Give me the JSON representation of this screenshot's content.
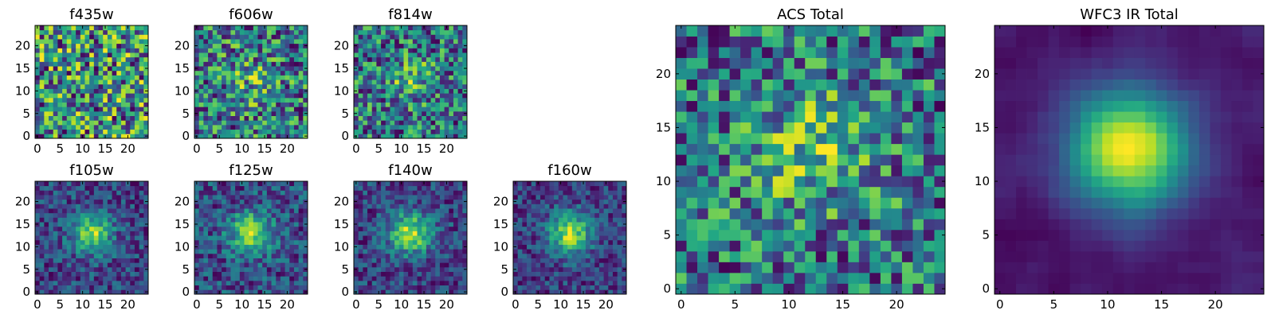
{
  "chart_data": [
    {
      "type": "heatmap",
      "title": "f435w",
      "xticks": [
        "0",
        "5",
        "10",
        "15",
        "20"
      ],
      "yticks": [
        "0",
        "5",
        "10",
        "15",
        "20"
      ],
      "xlim": [
        -0.5,
        24.5
      ],
      "ylim": [
        -0.5,
        24.5
      ],
      "grid": false,
      "colormap": "viridis",
      "noise": 0.85,
      "peak": 0.0,
      "sigma": 4,
      "center": [
        12,
        12
      ],
      "smooth": false
    },
    {
      "type": "heatmap",
      "title": "f606w",
      "xticks": [
        "0",
        "5",
        "10",
        "15",
        "20"
      ],
      "yticks": [
        "0",
        "5",
        "10",
        "15",
        "20"
      ],
      "xlim": [
        -0.5,
        24.5
      ],
      "ylim": [
        -0.5,
        24.5
      ],
      "grid": false,
      "colormap": "viridis",
      "noise": 0.75,
      "peak": 0.25,
      "sigma": 4,
      "center": [
        12,
        12
      ],
      "smooth": false
    },
    {
      "type": "heatmap",
      "title": "f814w",
      "xticks": [
        "0",
        "5",
        "10",
        "15",
        "20"
      ],
      "yticks": [
        "0",
        "5",
        "10",
        "15",
        "20"
      ],
      "xlim": [
        -0.5,
        24.5
      ],
      "ylim": [
        -0.5,
        24.5
      ],
      "grid": false,
      "colormap": "viridis",
      "noise": 0.7,
      "peak": 0.4,
      "sigma": 3,
      "center": [
        12,
        13
      ],
      "smooth": false
    },
    {
      "type": "heatmap",
      "title": "f105w",
      "xticks": [
        "0",
        "5",
        "10",
        "15",
        "20"
      ],
      "yticks": [
        "0",
        "5",
        "10",
        "15",
        "20"
      ],
      "xlim": [
        -0.5,
        24.5
      ],
      "ylim": [
        -0.5,
        24.5
      ],
      "grid": false,
      "colormap": "viridis",
      "noise": 0.35,
      "peak": 0.85,
      "sigma": 3,
      "center": [
        12,
        13
      ],
      "smooth": false
    },
    {
      "type": "heatmap",
      "title": "f125w",
      "xticks": [
        "0",
        "5",
        "10",
        "15",
        "20"
      ],
      "yticks": [
        "0",
        "5",
        "10",
        "15",
        "20"
      ],
      "xlim": [
        -0.5,
        24.5
      ],
      "ylim": [
        -0.5,
        24.5
      ],
      "grid": false,
      "colormap": "viridis",
      "noise": 0.35,
      "peak": 0.8,
      "sigma": 3.2,
      "center": [
        12,
        13
      ],
      "smooth": false
    },
    {
      "type": "heatmap",
      "title": "f140w",
      "xticks": [
        "0",
        "5",
        "10",
        "15",
        "20"
      ],
      "yticks": [
        "0",
        "5",
        "10",
        "15",
        "20"
      ],
      "xlim": [
        -0.5,
        24.5
      ],
      "ylim": [
        -0.5,
        24.5
      ],
      "grid": false,
      "colormap": "viridis",
      "noise": 0.32,
      "peak": 0.82,
      "sigma": 3.3,
      "center": [
        12,
        13
      ],
      "smooth": false
    },
    {
      "type": "heatmap",
      "title": "f160w",
      "xticks": [
        "0",
        "5",
        "10",
        "15",
        "20"
      ],
      "yticks": [
        "0",
        "5",
        "10",
        "15",
        "20"
      ],
      "xlim": [
        -0.5,
        24.5
      ],
      "ylim": [
        -0.5,
        24.5
      ],
      "grid": false,
      "colormap": "viridis",
      "noise": 0.3,
      "peak": 0.85,
      "sigma": 3.2,
      "center": [
        12,
        13
      ],
      "smooth": false
    },
    {
      "type": "heatmap",
      "title": "ACS Total",
      "xticks": [
        "0",
        "5",
        "10",
        "15",
        "20"
      ],
      "yticks": [
        "0",
        "5",
        "10",
        "15",
        "20"
      ],
      "xlim": [
        -0.5,
        24.5
      ],
      "ylim": [
        -0.5,
        24.5
      ],
      "grid": false,
      "colormap": "viridis",
      "noise": 0.55,
      "peak": 0.35,
      "sigma": 4,
      "center": [
        12,
        13
      ],
      "smooth": false
    },
    {
      "type": "heatmap",
      "title": "WFC3 IR Total",
      "xticks": [
        "0",
        "5",
        "10",
        "15",
        "20"
      ],
      "yticks": [
        "0",
        "5",
        "10",
        "15",
        "20"
      ],
      "xlim": [
        -0.5,
        24.5
      ],
      "ylim": [
        -0.5,
        24.5
      ],
      "grid": false,
      "colormap": "viridis",
      "noise": 0.12,
      "peak": 0.95,
      "sigma": 3.8,
      "center": [
        12,
        13
      ],
      "smooth": true
    }
  ]
}
